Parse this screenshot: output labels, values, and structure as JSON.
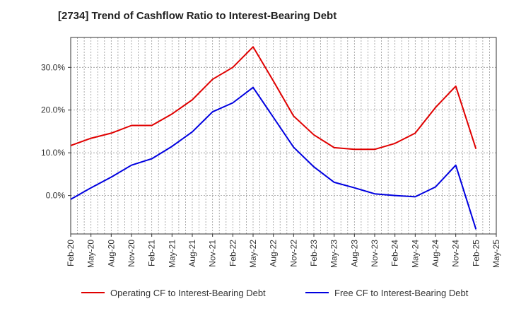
{
  "chart_data": {
    "type": "line",
    "title": "[2734]  Trend of Cashflow Ratio to Interest-Bearing Debt",
    "xlabel": "",
    "ylabel": "",
    "x": [
      "Feb-20",
      "May-20",
      "Aug-20",
      "Nov-20",
      "Feb-21",
      "May-21",
      "Aug-21",
      "Nov-21",
      "Feb-22",
      "May-22",
      "Aug-22",
      "Nov-22",
      "Feb-23",
      "May-23",
      "Aug-23",
      "Nov-23",
      "Feb-24",
      "May-24",
      "Aug-24",
      "Nov-24",
      "Feb-25",
      "May-25"
    ],
    "y_ticks": [
      "0.0%",
      "10.0%",
      "20.0%",
      "30.0%"
    ],
    "y_tick_values": [
      0,
      10,
      20,
      30
    ],
    "ylim": [
      -9,
      37
    ],
    "grid": true,
    "legend_position": "bottom",
    "series": [
      {
        "name": "Operating CF to Interest-Bearing Debt",
        "color": "#e00000",
        "values": [
          11.7,
          13.4,
          14.6,
          16.4,
          16.4,
          19.1,
          22.4,
          27.2,
          30.0,
          34.8,
          26.8,
          18.6,
          14.2,
          11.2,
          10.8,
          10.8,
          12.2,
          14.6,
          20.6,
          25.6,
          10.9,
          null
        ]
      },
      {
        "name": "Free CF to Interest-Bearing Debt",
        "color": "#0000e0",
        "values": [
          -0.9,
          1.8,
          4.3,
          7.1,
          8.6,
          11.5,
          14.9,
          19.6,
          21.7,
          25.3,
          18.3,
          11.3,
          6.7,
          3.1,
          1.8,
          0.4,
          0.0,
          -0.3,
          2.0,
          7.1,
          -7.9,
          null
        ]
      }
    ]
  }
}
